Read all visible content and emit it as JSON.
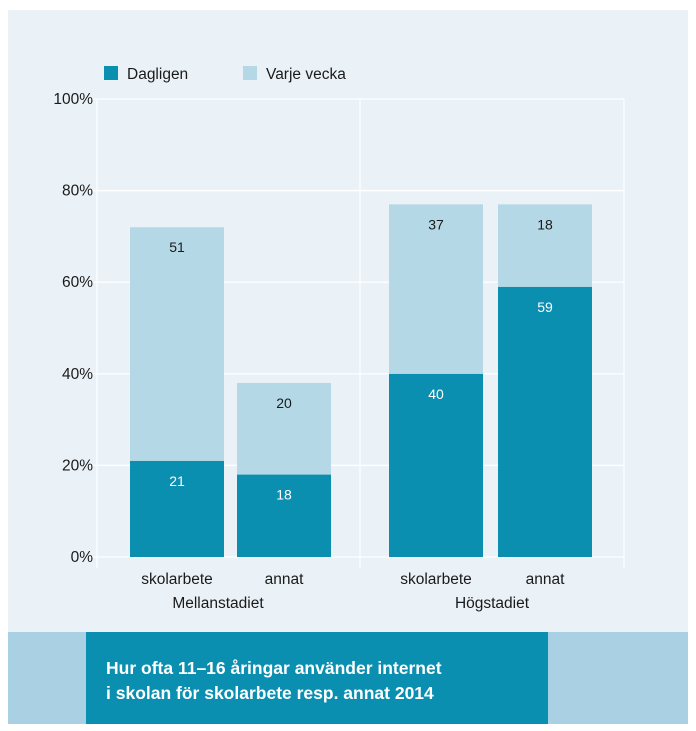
{
  "chart_data": {
    "type": "bar",
    "stacked": true,
    "groups": [
      "Mellanstadiet",
      "Högstadiet"
    ],
    "categories": [
      "skolarbete",
      "annat",
      "skolarbete",
      "annat"
    ],
    "category_group": [
      0,
      0,
      1,
      1
    ],
    "series": [
      {
        "name": "Dagligen",
        "values": [
          21,
          18,
          40,
          59
        ],
        "color": "#0a8fb0"
      },
      {
        "name": "Varje vecka",
        "values": [
          51,
          20,
          37,
          18
        ],
        "color": "#b5d8e6"
      }
    ],
    "yticks": [
      "0%",
      "20%",
      "40%",
      "60%",
      "80%",
      "100%"
    ],
    "ylim": [
      0,
      100
    ],
    "grid": true,
    "legend_position": "top-left"
  },
  "caption": {
    "line1": "Hur ofta 11–16 åringar använder internet",
    "line2": "i skolan för skolarbete resp. annat 2014"
  }
}
